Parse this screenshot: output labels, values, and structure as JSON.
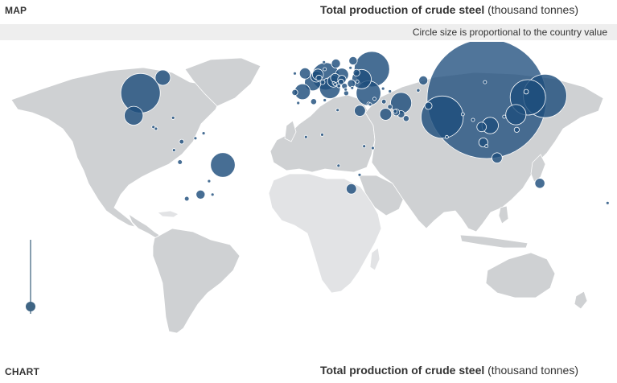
{
  "map_section": {
    "label": "MAP",
    "title_bold": "Total production of crude steel",
    "title_unit": "(thousand tonnes)",
    "note": "Circle size is proportional to the country value"
  },
  "chart_section": {
    "label": "CHART",
    "title_bold": "Total production of crude steel",
    "title_unit": "(thousand tonnes)"
  },
  "colors": {
    "bubble": "#1f4e7d",
    "land": "#cfd1d3",
    "land_light": "#e2e3e5",
    "note_bar": "#eeeeee"
  },
  "chart_data": {
    "type": "bubble-map",
    "title": "Total production of crude steel",
    "unit": "thousand tonnes",
    "note": "Circle size is proportional to the country value",
    "bubbles": [
      {
        "name": "China",
        "lon": 104,
        "lat": 35,
        "value": 800000
      },
      {
        "name": "India",
        "lon": 78,
        "lat": 22,
        "value": 100000
      },
      {
        "name": "Japan",
        "lon": 138,
        "lat": 37,
        "value": 105000
      },
      {
        "name": "United States",
        "lon": -98,
        "lat": 39,
        "value": 87000
      },
      {
        "name": "Russia",
        "lon": 37,
        "lat": 56,
        "value": 70000
      },
      {
        "name": "Korea",
        "lon": 128,
        "lat": 36,
        "value": 70000
      },
      {
        "name": "Germany",
        "lon": 10,
        "lat": 51,
        "value": 42000
      },
      {
        "name": "Turkey",
        "lon": 35,
        "lat": 39,
        "value": 34000
      },
      {
        "name": "Brazil",
        "lon": -50,
        "lat": -12,
        "value": 34000
      },
      {
        "name": "Iran",
        "lon": 54,
        "lat": 32,
        "value": 25000
      },
      {
        "name": "Italy",
        "lon": 12.5,
        "lat": 42.5,
        "value": 24000
      },
      {
        "name": "Taiwan",
        "lon": 121,
        "lat": 23.7,
        "value": 23000
      },
      {
        "name": "Ukraine",
        "lon": 31,
        "lat": 49,
        "value": 21000
      },
      {
        "name": "Mexico",
        "lon": -102,
        "lat": 23,
        "value": 20000
      },
      {
        "name": "Viet Nam",
        "lon": 106,
        "lat": 16,
        "value": 15000
      },
      {
        "name": "France",
        "lon": 2.5,
        "lat": 46.5,
        "value": 15000
      },
      {
        "name": "Spain",
        "lon": -3.5,
        "lat": 40,
        "value": 14000
      },
      {
        "name": "Canada",
        "lon": -85,
        "lat": 50,
        "value": 13000
      },
      {
        "name": "Poland",
        "lon": 19.5,
        "lat": 52,
        "value": 10000
      },
      {
        "name": "Austria",
        "lon": 14.5,
        "lat": 47.5,
        "value": 8000
      },
      {
        "name": "Saudi Arabia",
        "lon": 45,
        "lat": 24,
        "value": 8000
      },
      {
        "name": "Egypt",
        "lon": 30,
        "lat": 26.5,
        "value": 7000
      },
      {
        "name": "Belgium",
        "lon": 4.5,
        "lat": 50.8,
        "value": 7000
      },
      {
        "name": "Netherlands",
        "lon": 5.5,
        "lat": 52.2,
        "value": 6800
      },
      {
        "name": "United Kingdom",
        "lon": -2,
        "lat": 53,
        "value": 7000
      },
      {
        "name": "Australia",
        "lon": 135,
        "lat": -25,
        "value": 5500
      },
      {
        "name": "South Africa",
        "lon": 25,
        "lat": -29,
        "value": 6000
      },
      {
        "name": "Indonesia",
        "lon": 110,
        "lat": -7,
        "value": 6000
      },
      {
        "name": "Thailand",
        "lon": 101,
        "lat": 15,
        "value": 5000
      },
      {
        "name": "Kazakhstan",
        "lon": 67,
        "lat": 48,
        "value": 4500
      },
      {
        "name": "Malaysia",
        "lon": 102,
        "lat": 4,
        "value": 4500
      },
      {
        "name": "Argentina",
        "lon": -63,
        "lat": -33,
        "value": 4500
      },
      {
        "name": "Czech Republic",
        "lon": 15.5,
        "lat": 49.8,
        "value": 4500
      },
      {
        "name": "Sweden",
        "lon": 16,
        "lat": 60,
        "value": 4500
      },
      {
        "name": "Finland",
        "lon": 26,
        "lat": 62,
        "value": 4000
      },
      {
        "name": "Slovakia",
        "lon": 19.5,
        "lat": 48.7,
        "value": 4000
      },
      {
        "name": "Romania",
        "lon": 25,
        "lat": 45.8,
        "value": 3500
      },
      {
        "name": "Belarus",
        "lon": 28,
        "lat": 53.5,
        "value": 2500
      },
      {
        "name": "Pakistan",
        "lon": 70,
        "lat": 30,
        "value": 3000
      },
      {
        "name": "Qatar",
        "lon": 51.2,
        "lat": 25.3,
        "value": 2500
      },
      {
        "name": "United Arab Emirates",
        "lon": 54,
        "lat": 24,
        "value": 3000
      },
      {
        "name": "Oman",
        "lon": 57,
        "lat": 21,
        "value": 2000
      },
      {
        "name": "Algeria",
        "lon": 3,
        "lat": 33,
        "value": 2000
      },
      {
        "name": "Morocco",
        "lon": -6,
        "lat": 32,
        "value": 600
      },
      {
        "name": "Portugal",
        "lon": -8,
        "lat": 39.5,
        "value": 2000
      },
      {
        "name": "Hungary",
        "lon": 19,
        "lat": 47,
        "value": 1800
      },
      {
        "name": "Serbia",
        "lon": 21,
        "lat": 44,
        "value": 1800
      },
      {
        "name": "Greece",
        "lon": 22,
        "lat": 39,
        "value": 1400
      },
      {
        "name": "Luxembourg",
        "lon": 6.1,
        "lat": 49.7,
        "value": 2000
      },
      {
        "name": "Switzerland",
        "lon": 8.2,
        "lat": 46.8,
        "value": 1300
      },
      {
        "name": "Norway",
        "lon": 9,
        "lat": 61,
        "value": 600
      },
      {
        "name": "Chile",
        "lon": -71,
        "lat": -36,
        "value": 1200
      },
      {
        "name": "Peru",
        "lon": -75,
        "lat": -10,
        "value": 1200
      },
      {
        "name": "Colombia",
        "lon": -74,
        "lat": 4.5,
        "value": 1200
      },
      {
        "name": "Ecuador",
        "lon": -78.5,
        "lat": -1.5,
        "value": 600
      },
      {
        "name": "Paraguay",
        "lon": -58,
        "lat": -23.5,
        "value": 100
      },
      {
        "name": "Uruguay",
        "lon": -56,
        "lat": -33,
        "value": 100
      },
      {
        "name": "Venezuela",
        "lon": -66,
        "lat": 7,
        "value": 300
      },
      {
        "name": "Guatemala",
        "lon": -90.5,
        "lat": 15,
        "value": 300
      },
      {
        "name": "Cuba",
        "lon": -79,
        "lat": 21.5,
        "value": 250
      },
      {
        "name": "Trinidad and Tobago",
        "lon": -61.2,
        "lat": 10.5,
        "value": 300
      },
      {
        "name": "El Salvador",
        "lon": -89,
        "lat": 13.7,
        "value": 80
      },
      {
        "name": "New Zealand",
        "lon": 174.5,
        "lat": -39,
        "value": 600
      },
      {
        "name": "Philippines",
        "lon": 121.5,
        "lat": 13,
        "value": 1500
      },
      {
        "name": "Bangladesh",
        "lon": 90,
        "lat": 24,
        "value": 500
      },
      {
        "name": "Sri Lanka",
        "lon": 80.7,
        "lat": 7.8,
        "value": 50
      },
      {
        "name": "Myanmar",
        "lon": 96,
        "lat": 20,
        "value": 200
      },
      {
        "name": "Kenya",
        "lon": 37.5,
        "lat": 0,
        "value": 30
      },
      {
        "name": "Uganda",
        "lon": 32.5,
        "lat": 1.3,
        "value": 40
      },
      {
        "name": "Ghana",
        "lon": -1.5,
        "lat": 7.9,
        "value": 300
      },
      {
        "name": "Nigeria",
        "lon": 8,
        "lat": 9.5,
        "value": 100
      },
      {
        "name": "Libya",
        "lon": 17,
        "lat": 27,
        "value": 500
      },
      {
        "name": "Tunisia",
        "lon": 9.5,
        "lat": 34,
        "value": 60
      },
      {
        "name": "Syria",
        "lon": 38.5,
        "lat": 35,
        "value": 60
      },
      {
        "name": "Jordan",
        "lon": 36,
        "lat": 31,
        "value": 200
      },
      {
        "name": "Israel",
        "lon": 35,
        "lat": 31.5,
        "value": 300
      },
      {
        "name": "Bahrain",
        "lon": 50.6,
        "lat": 26,
        "value": 900
      },
      {
        "name": "Kuwait",
        "lon": 47.5,
        "lat": 29.3,
        "value": 1200
      },
      {
        "name": "Iraq",
        "lon": 44,
        "lat": 33,
        "value": 1200
      },
      {
        "name": "Azerbaijan",
        "lon": 47.5,
        "lat": 40.3,
        "value": 250
      },
      {
        "name": "Georgia",
        "lon": 43.5,
        "lat": 42.2,
        "value": 200
      },
      {
        "name": "Uzbekistan",
        "lon": 64,
        "lat": 41,
        "value": 700
      },
      {
        "name": "Moldova",
        "lon": 28.5,
        "lat": 47.2,
        "value": 300
      },
      {
        "name": "Bulgaria",
        "lon": 25.5,
        "lat": 42.7,
        "value": 500
      },
      {
        "name": "Bosnia and Herzegovina",
        "lon": 17.7,
        "lat": 44.1,
        "value": 800
      },
      {
        "name": "Croatia",
        "lon": 15.5,
        "lat": 45.2,
        "value": 100
      },
      {
        "name": "Slovenia",
        "lon": 14.8,
        "lat": 46.1,
        "value": 600
      },
      {
        "name": "Macedonia",
        "lon": 21.7,
        "lat": 41.6,
        "value": 200
      },
      {
        "name": "Latvia",
        "lon": 24.5,
        "lat": 57,
        "value": 200
      },
      {
        "name": "Denmark",
        "lon": 9.5,
        "lat": 56,
        "value": 80
      },
      {
        "name": "Ireland",
        "lon": -8,
        "lat": 53,
        "value": 80
      },
      {
        "name": "Hong Kong",
        "lon": 114.2,
        "lat": 22.3,
        "value": 150
      },
      {
        "name": "Mongolia",
        "lon": 103,
        "lat": 46.8,
        "value": 80
      },
      {
        "name": "Korea DPR",
        "lon": 127,
        "lat": 40,
        "value": 1200
      },
      {
        "name": "Singapore",
        "lon": 103.8,
        "lat": 1.35,
        "value": 600
      },
      {
        "name": "Zimbabwe",
        "lon": 29.8,
        "lat": -19,
        "value": 80
      },
      {
        "name": "Angola",
        "lon": 17.5,
        "lat": -12.5,
        "value": 100
      }
    ]
  }
}
